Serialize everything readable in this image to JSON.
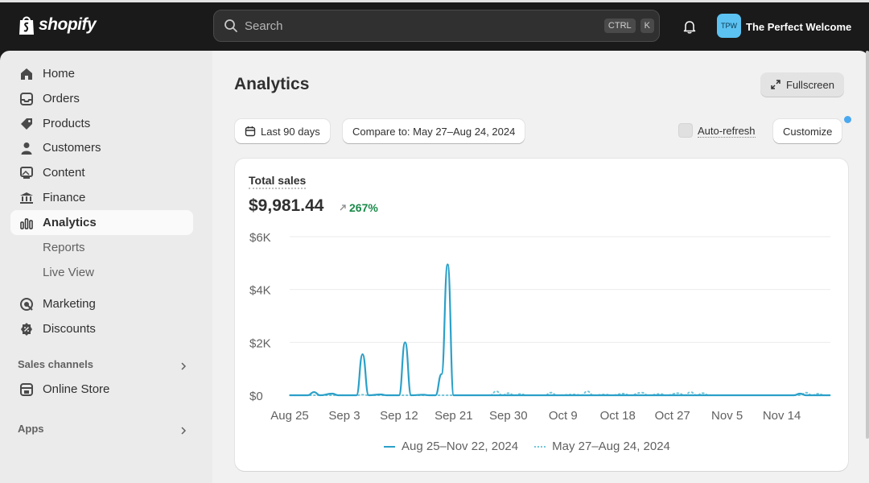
{
  "topbar": {
    "brand": "shopify",
    "search_placeholder": "Search",
    "shortcut_ctrl": "CTRL",
    "shortcut_key": "K",
    "avatar_initials": "TPW",
    "store_name": "The Perfect Welcome",
    "icons": [
      "shopify-bag-icon",
      "search-icon",
      "bell-icon"
    ]
  },
  "sidebar": {
    "items": [
      {
        "label": "Home",
        "icon": "home-icon"
      },
      {
        "label": "Orders",
        "icon": "inbox-icon"
      },
      {
        "label": "Products",
        "icon": "tag-icon"
      },
      {
        "label": "Customers",
        "icon": "person-icon"
      },
      {
        "label": "Content",
        "icon": "image-icon"
      },
      {
        "label": "Finance",
        "icon": "bank-icon"
      },
      {
        "label": "Analytics",
        "icon": "bar-chart-icon",
        "active": true
      }
    ],
    "sub_items": [
      "Reports",
      "Live View"
    ],
    "items2": [
      {
        "label": "Marketing",
        "icon": "target-icon"
      },
      {
        "label": "Discounts",
        "icon": "discount-icon"
      }
    ],
    "sales_channels_label": "Sales channels",
    "online_store_label": "Online Store",
    "apps_label": "Apps"
  },
  "main": {
    "title": "Analytics",
    "fullscreen_label": "Fullscreen",
    "date_range_label": "Last 90 days",
    "compare_label": "Compare to: May 27–Aug 24, 2024",
    "auto_refresh_label": "Auto-refresh",
    "customize_label": "Customize"
  },
  "card": {
    "metric_label": "Total sales",
    "metric_value": "$9,981.44",
    "metric_change": "267%"
  },
  "colors": {
    "accent_line": "#2ba0c8",
    "compare_line": "#72c6d8",
    "positive": "#1a8a4a",
    "avatar_bg": "#5cc2f2"
  },
  "chart_data": {
    "type": "line",
    "title": "Total sales",
    "xlabel": "",
    "ylabel": "",
    "ylim": [
      0,
      6000
    ],
    "y_ticks": [
      {
        "value": 0,
        "label": "$0"
      },
      {
        "value": 2000,
        "label": "$2K"
      },
      {
        "value": 4000,
        "label": "$4K"
      },
      {
        "value": 6000,
        "label": "$6K"
      }
    ],
    "x_ticks": [
      "Aug 25",
      "Sep 3",
      "Sep 12",
      "Sep 21",
      "Sep 30",
      "Oct 9",
      "Oct 18",
      "Oct 27",
      "Nov 5",
      "Nov 14"
    ],
    "x_range_days": [
      0,
      89
    ],
    "grid": true,
    "legend_position": "bottom",
    "series": [
      {
        "name": "Aug 25–Nov 22, 2024",
        "style": "solid",
        "points": [
          [
            0,
            0
          ],
          [
            3,
            0
          ],
          [
            4,
            120
          ],
          [
            5,
            0
          ],
          [
            7,
            60
          ],
          [
            8,
            0
          ],
          [
            11,
            0
          ],
          [
            12,
            1550
          ],
          [
            13,
            0
          ],
          [
            15,
            30
          ],
          [
            16,
            0
          ],
          [
            18,
            0
          ],
          [
            19,
            2000
          ],
          [
            20,
            0
          ],
          [
            22,
            20
          ],
          [
            23,
            0
          ],
          [
            24,
            0
          ],
          [
            25,
            800
          ],
          [
            26,
            4950
          ],
          [
            27,
            0
          ],
          [
            29,
            0
          ],
          [
            83,
            0
          ],
          [
            84,
            60
          ],
          [
            85,
            0
          ],
          [
            89,
            0
          ]
        ]
      },
      {
        "name": "May 27–Aug 24, 2024",
        "style": "dotted",
        "points": [
          [
            0,
            0
          ],
          [
            11,
            0
          ],
          [
            12,
            20
          ],
          [
            13,
            0
          ],
          [
            33,
            0
          ],
          [
            34,
            150
          ],
          [
            35,
            0
          ],
          [
            36,
            80
          ],
          [
            37,
            0
          ],
          [
            38,
            50
          ],
          [
            39,
            0
          ],
          [
            42,
            0
          ],
          [
            43,
            100
          ],
          [
            44,
            0
          ],
          [
            47,
            30
          ],
          [
            48,
            0
          ],
          [
            49,
            150
          ],
          [
            50,
            0
          ],
          [
            52,
            30
          ],
          [
            53,
            0
          ],
          [
            55,
            60
          ],
          [
            56,
            0
          ],
          [
            58,
            100
          ],
          [
            59,
            0
          ],
          [
            61,
            50
          ],
          [
            62,
            0
          ],
          [
            64,
            80
          ],
          [
            65,
            0
          ],
          [
            66,
            120
          ],
          [
            67,
            0
          ],
          [
            68,
            80
          ],
          [
            69,
            0
          ],
          [
            84,
            0
          ],
          [
            85,
            100
          ],
          [
            86,
            0
          ],
          [
            87,
            60
          ],
          [
            88,
            0
          ],
          [
            89,
            0
          ]
        ]
      }
    ]
  }
}
